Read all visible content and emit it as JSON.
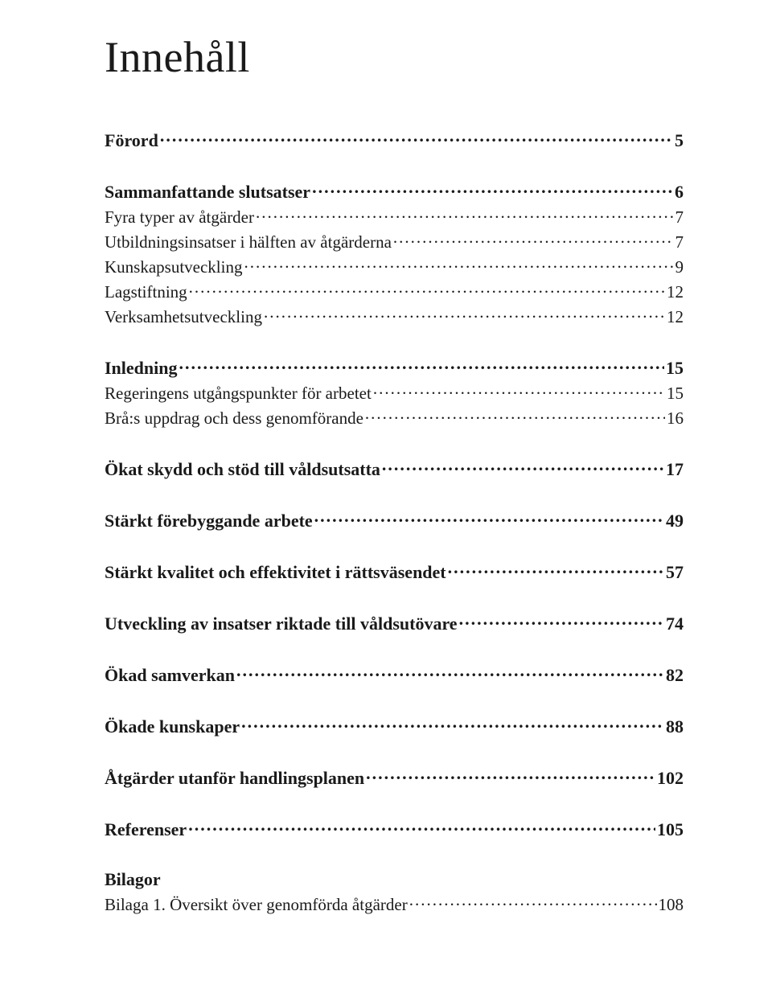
{
  "title": "Innehåll",
  "entries": [
    {
      "label": "Förord",
      "page": "5",
      "level": 0
    },
    {
      "label": "Sammanfattande slutsatser",
      "page": "6",
      "level": 0
    },
    {
      "label": "Fyra typer av åtgärder",
      "page": "7",
      "level": 1
    },
    {
      "label": "Utbildningsinsatser i hälften av åtgärderna",
      "page": "7",
      "level": 1
    },
    {
      "label": "Kunskapsutveckling",
      "page": "9",
      "level": 1
    },
    {
      "label": "Lagstiftning",
      "page": "12",
      "level": 1
    },
    {
      "label": "Verksamhetsutveckling",
      "page": "12",
      "level": 1
    },
    {
      "label": "Inledning",
      "page": "15",
      "level": 0
    },
    {
      "label": "Regeringens utgångspunkter för arbetet",
      "page": "15",
      "level": 1
    },
    {
      "label": "Brå:s uppdrag och dess genomförande",
      "page": "16",
      "level": 1
    },
    {
      "label": "Ökat skydd och stöd till våldsutsatta",
      "page": "17",
      "level": 0
    },
    {
      "label": "Stärkt förebyggande arbete",
      "page": "49",
      "level": 0
    },
    {
      "label": "Stärkt kvalitet och effektivitet i rättsväsendet",
      "page": "57",
      "level": 0
    },
    {
      "label": "Utveckling av insatser riktade till våldsutövare",
      "page": "74",
      "level": 0
    },
    {
      "label": "Ökad samverkan",
      "page": "82",
      "level": 0
    },
    {
      "label": "Ökade kunskaper",
      "page": "88",
      "level": 0
    },
    {
      "label": "Åtgärder utanför handlingsplanen",
      "page": "102",
      "level": 0
    },
    {
      "label": "Referenser",
      "page": "105",
      "level": 0
    },
    {
      "label": "Bilagor",
      "page": "",
      "level": 0,
      "nopage": true
    },
    {
      "label": "Bilaga 1. Översikt över genomförda åtgärder",
      "page": "108",
      "level": 1
    }
  ],
  "style": {
    "background": "#ffffff",
    "text_color": "#1a1a1a",
    "title_fontsize": 54,
    "lvl0_fontsize": 22,
    "lvl1_fontsize": 21
  }
}
